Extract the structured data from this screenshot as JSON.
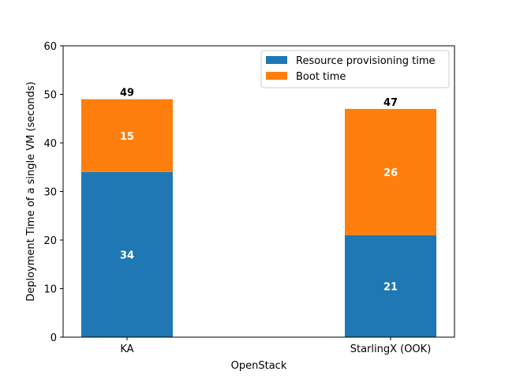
{
  "chart_data": {
    "type": "bar",
    "stacked": true,
    "categories": [
      "KA",
      "StarlingX (OOK)"
    ],
    "series": [
      {
        "name": "Resource provisioning time",
        "values": [
          34,
          21
        ],
        "color": "#1f77b4"
      },
      {
        "name": "Boot time",
        "values": [
          15,
          26
        ],
        "color": "#ff7f0e"
      }
    ],
    "totals": [
      49,
      47
    ],
    "xlabel": "OpenStack",
    "ylabel": "Deployment Time of a single VM (seconds)",
    "ylim": [
      0,
      60
    ],
    "yticks": [
      0,
      10,
      20,
      30,
      40,
      50,
      60
    ],
    "legend_position": "top-right",
    "grid": false
  }
}
